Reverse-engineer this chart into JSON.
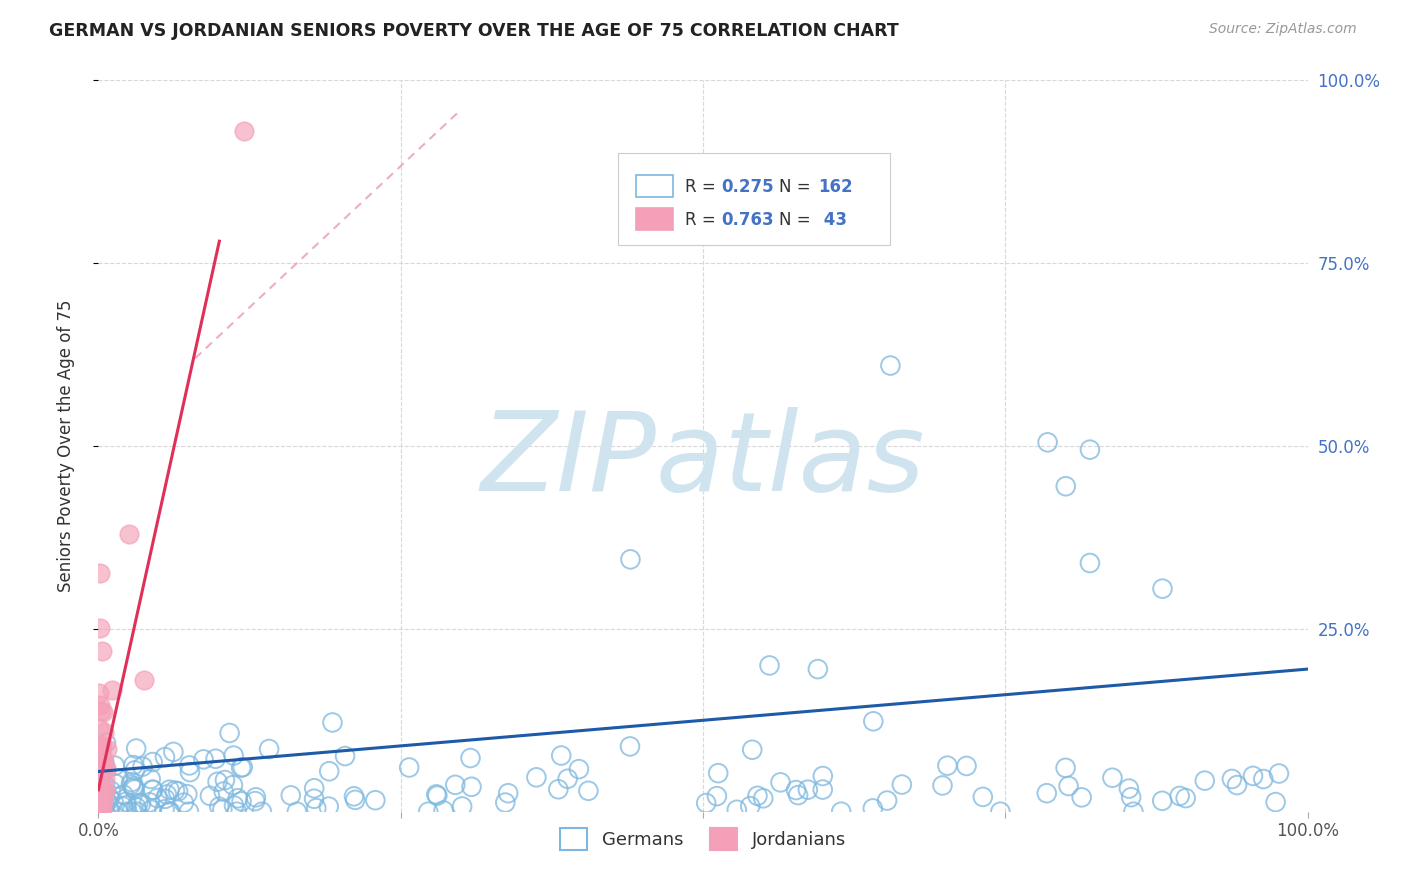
{
  "title": "GERMAN VS JORDANIAN SENIORS POVERTY OVER THE AGE OF 75 CORRELATION CHART",
  "source": "Source: ZipAtlas.com",
  "ylabel": "Seniors Poverty Over the Age of 75",
  "german_R": 0.275,
  "german_N": 162,
  "jordanian_R": 0.763,
  "jordanian_N": 43,
  "german_color": "#7db8e0",
  "german_fill": "none",
  "jordanian_color": "#f4a0b8",
  "german_line_color": "#1f5aa8",
  "jordanian_line_color": "#e0305a",
  "jordanian_dash_color": "#e8a0b8",
  "watermark_text": "ZIPatlas",
  "watermark_color": "#d0e4f0",
  "background_color": "#ffffff",
  "grid_color": "#d8d8d8",
  "title_color": "#222222",
  "source_color": "#999999",
  "tick_color": "#555555",
  "right_tick_color": "#4472c4",
  "legend_text_color": "#333333",
  "legend_value_color": "#4472c4"
}
